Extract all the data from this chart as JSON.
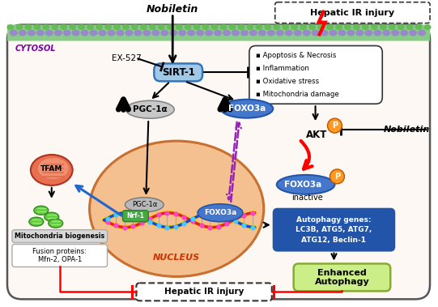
{
  "bg_color": "#ffffff",
  "cell_fill": "#fef8f4",
  "cell_border": "#555555",
  "nucleus_fill": "#f4c090",
  "nucleus_border": "#c87030",
  "cytosol_label": "CYTOSOL",
  "cytosol_color": "#7700aa",
  "nucleus_label": "NUCLEUS",
  "nucleus_label_color": "#cc3300",
  "sirt1_label": "SIRT-1",
  "sirt1_fill": "#a0c8e8",
  "sirt1_border": "#3377bb",
  "pgc1a_label": "PGC-1α",
  "pgc1a_fill": "#c8c8c8",
  "pgc1a_border": "#888888",
  "foxo3a_label": "FOXO3a",
  "foxo3a_fill": "#4477cc",
  "foxo3a_border": "#2255aa",
  "nobiletin_label": "Nobiletin",
  "ex527_label": "EX-527",
  "akt_label": "AKT",
  "p_label": "P",
  "p_fill": "#ff9922",
  "inactive_label": "inactive",
  "tfam_label": "TFAM",
  "mito_bio_label": "Mitochondria biogenesis",
  "fusion_label": "Fusion proteins:\nMfn-2, OPA-1",
  "autophagy_box_fill": "#2255aa",
  "autophagy_label": "Autophagy genes:\nLC3B, ATG5, ATG7,\nATG12, Beclin-1",
  "autophagy_text_color": "#ffffff",
  "enhanced_fill": "#ccee88",
  "enhanced_label": "Enhanced\nAutophagy",
  "enhanced_border": "#88aa33",
  "hepatic_top_label": "Hepatic IR injury",
  "hepatic_bottom_label": "Hepatic IR injury",
  "ir_items": [
    "Apoptosis & Necrosis",
    "Inflammation",
    "Oxidative stress",
    "Mitochondria damage"
  ],
  "mito_bio_box_fill": "#d8d8d8",
  "nrf1_fill": "#44aa44",
  "nrf1_label": "Nrf-1",
  "pgc1a_nucleus_fill": "#aaaaaa"
}
